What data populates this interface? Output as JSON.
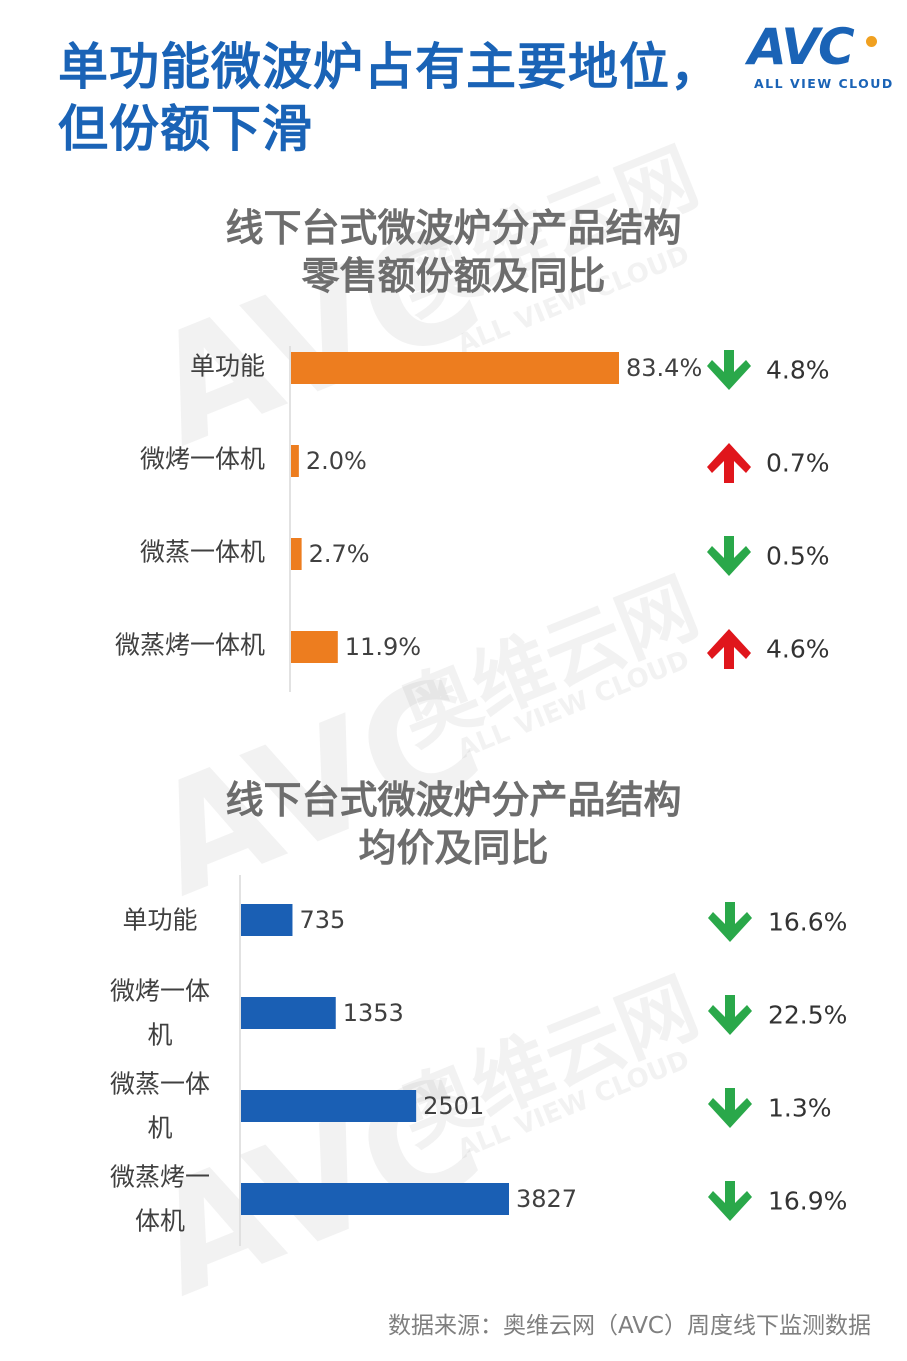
{
  "headline": {
    "line1": "单功能微波炉占有主要地位，",
    "line2": "但份额下滑"
  },
  "logo": {
    "text": "AVC",
    "sub": "ALL VIEW CLOUD"
  },
  "watermark": {
    "cn": "奥维云网",
    "en": "ALL VIEW CLOUD",
    "logo": "AVC"
  },
  "colors": {
    "brand": "#1a63b6",
    "bar1": "#ed7d1f",
    "bar2": "#1a5fb4",
    "up": "#e0161c",
    "down": "#2aa84a",
    "title": "#6d6d6d"
  },
  "chart_data": [
    {
      "type": "bar",
      "orientation": "horizontal",
      "title": [
        "线下台式微波炉分产品结构",
        "零售额份额及同比"
      ],
      "categories": [
        "单功能",
        "微烤一体机",
        "微蒸一体机",
        "微蒸烤一体机"
      ],
      "values": [
        83.4,
        2.0,
        2.7,
        11.9
      ],
      "value_labels": [
        "83.4%",
        "2.0%",
        "2.7%",
        "11.9%"
      ],
      "yoy": [
        {
          "direction": "down",
          "label": "4.8%"
        },
        {
          "direction": "up",
          "label": "0.7%"
        },
        {
          "direction": "down",
          "label": "0.5%"
        },
        {
          "direction": "up",
          "label": "4.6%"
        }
      ],
      "xlim": [
        0,
        100
      ]
    },
    {
      "type": "bar",
      "orientation": "horizontal",
      "title": [
        "线下台式微波炉分产品结构",
        "均价及同比"
      ],
      "categories": [
        [
          "单功能"
        ],
        [
          "微烤一体",
          "机"
        ],
        [
          "微蒸一体",
          "机"
        ],
        [
          "微蒸烤一",
          "体机"
        ]
      ],
      "values": [
        735,
        1353,
        2501,
        3827
      ],
      "value_labels": [
        "735",
        "1353",
        "2501",
        "3827"
      ],
      "yoy": [
        {
          "direction": "down",
          "label": "16.6%"
        },
        {
          "direction": "down",
          "label": "22.5%"
        },
        {
          "direction": "down",
          "label": "1.3%"
        },
        {
          "direction": "down",
          "label": "16.9%"
        }
      ],
      "xlim": [
        0,
        4600
      ]
    }
  ],
  "source": "数据来源：奥维云网（AVC）周度线下监测数据"
}
